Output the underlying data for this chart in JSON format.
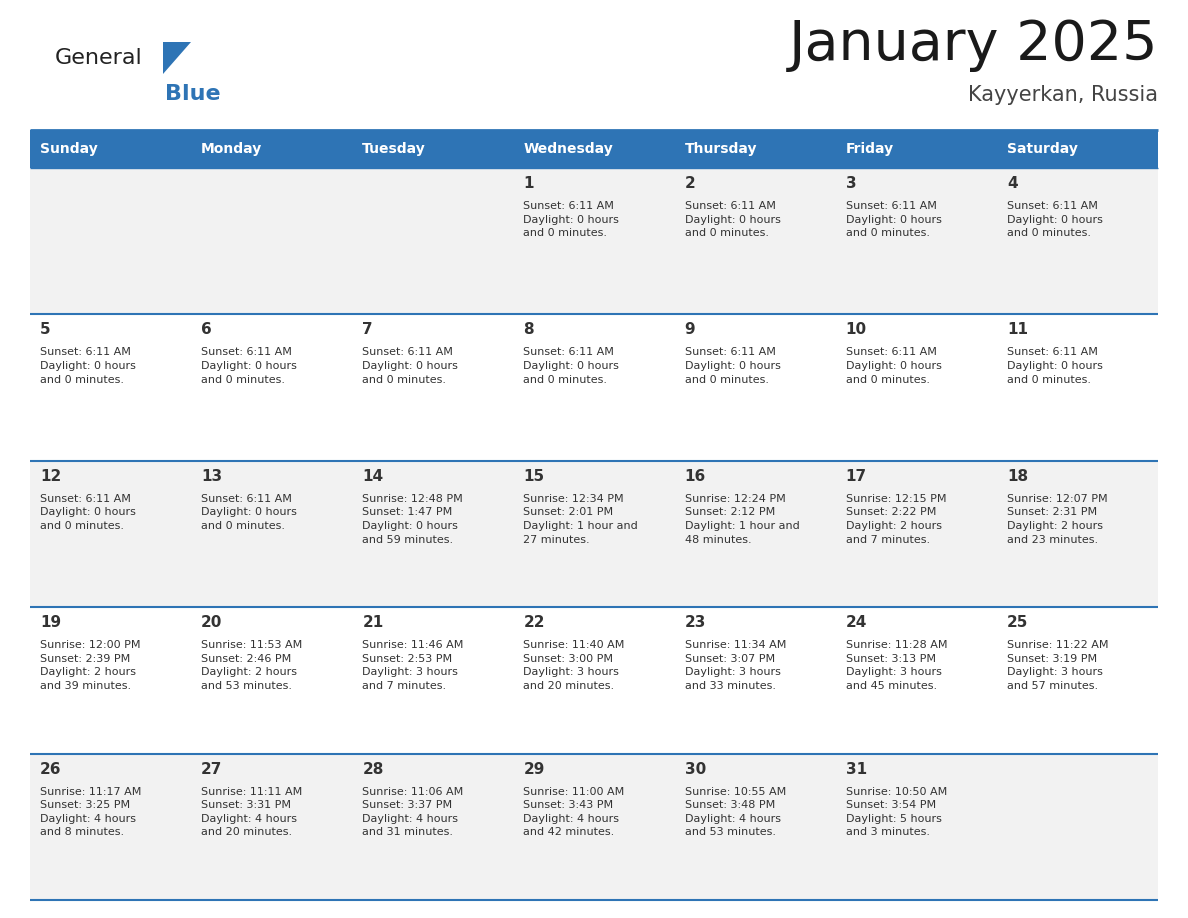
{
  "title": "January 2025",
  "subtitle": "Kayyerkan, Russia",
  "header_bg": "#2E74B5",
  "header_text_color": "#FFFFFF",
  "row_bg_odd": "#F2F2F2",
  "row_bg_even": "#FFFFFF",
  "border_color": "#2E74B5",
  "text_color": "#333333",
  "day_headers": [
    "Sunday",
    "Monday",
    "Tuesday",
    "Wednesday",
    "Thursday",
    "Friday",
    "Saturday"
  ],
  "days": [
    {
      "day": 1,
      "col": 3,
      "row": 1,
      "sunrise": "",
      "sunset": "Sunset: 6:11 AM",
      "daylight": "Daylight: 0 hours\nand 0 minutes."
    },
    {
      "day": 2,
      "col": 4,
      "row": 1,
      "sunrise": "",
      "sunset": "Sunset: 6:11 AM",
      "daylight": "Daylight: 0 hours\nand 0 minutes."
    },
    {
      "day": 3,
      "col": 5,
      "row": 1,
      "sunrise": "",
      "sunset": "Sunset: 6:11 AM",
      "daylight": "Daylight: 0 hours\nand 0 minutes."
    },
    {
      "day": 4,
      "col": 6,
      "row": 1,
      "sunrise": "",
      "sunset": "Sunset: 6:11 AM",
      "daylight": "Daylight: 0 hours\nand 0 minutes."
    },
    {
      "day": 5,
      "col": 0,
      "row": 2,
      "sunrise": "",
      "sunset": "Sunset: 6:11 AM",
      "daylight": "Daylight: 0 hours\nand 0 minutes."
    },
    {
      "day": 6,
      "col": 1,
      "row": 2,
      "sunrise": "",
      "sunset": "Sunset: 6:11 AM",
      "daylight": "Daylight: 0 hours\nand 0 minutes."
    },
    {
      "day": 7,
      "col": 2,
      "row": 2,
      "sunrise": "",
      "sunset": "Sunset: 6:11 AM",
      "daylight": "Daylight: 0 hours\nand 0 minutes."
    },
    {
      "day": 8,
      "col": 3,
      "row": 2,
      "sunrise": "",
      "sunset": "Sunset: 6:11 AM",
      "daylight": "Daylight: 0 hours\nand 0 minutes."
    },
    {
      "day": 9,
      "col": 4,
      "row": 2,
      "sunrise": "",
      "sunset": "Sunset: 6:11 AM",
      "daylight": "Daylight: 0 hours\nand 0 minutes."
    },
    {
      "day": 10,
      "col": 5,
      "row": 2,
      "sunrise": "",
      "sunset": "Sunset: 6:11 AM",
      "daylight": "Daylight: 0 hours\nand 0 minutes."
    },
    {
      "day": 11,
      "col": 6,
      "row": 2,
      "sunrise": "",
      "sunset": "Sunset: 6:11 AM",
      "daylight": "Daylight: 0 hours\nand 0 minutes."
    },
    {
      "day": 12,
      "col": 0,
      "row": 3,
      "sunrise": "",
      "sunset": "Sunset: 6:11 AM",
      "daylight": "Daylight: 0 hours\nand 0 minutes."
    },
    {
      "day": 13,
      "col": 1,
      "row": 3,
      "sunrise": "",
      "sunset": "Sunset: 6:11 AM",
      "daylight": "Daylight: 0 hours\nand 0 minutes."
    },
    {
      "day": 14,
      "col": 2,
      "row": 3,
      "sunrise": "Sunrise: 12:48 PM",
      "sunset": "Sunset: 1:47 PM",
      "daylight": "Daylight: 0 hours\nand 59 minutes."
    },
    {
      "day": 15,
      "col": 3,
      "row": 3,
      "sunrise": "Sunrise: 12:34 PM",
      "sunset": "Sunset: 2:01 PM",
      "daylight": "Daylight: 1 hour and\n27 minutes."
    },
    {
      "day": 16,
      "col": 4,
      "row": 3,
      "sunrise": "Sunrise: 12:24 PM",
      "sunset": "Sunset: 2:12 PM",
      "daylight": "Daylight: 1 hour and\n48 minutes."
    },
    {
      "day": 17,
      "col": 5,
      "row": 3,
      "sunrise": "Sunrise: 12:15 PM",
      "sunset": "Sunset: 2:22 PM",
      "daylight": "Daylight: 2 hours\nand 7 minutes."
    },
    {
      "day": 18,
      "col": 6,
      "row": 3,
      "sunrise": "Sunrise: 12:07 PM",
      "sunset": "Sunset: 2:31 PM",
      "daylight": "Daylight: 2 hours\nand 23 minutes."
    },
    {
      "day": 19,
      "col": 0,
      "row": 4,
      "sunrise": "Sunrise: 12:00 PM",
      "sunset": "Sunset: 2:39 PM",
      "daylight": "Daylight: 2 hours\nand 39 minutes."
    },
    {
      "day": 20,
      "col": 1,
      "row": 4,
      "sunrise": "Sunrise: 11:53 AM",
      "sunset": "Sunset: 2:46 PM",
      "daylight": "Daylight: 2 hours\nand 53 minutes."
    },
    {
      "day": 21,
      "col": 2,
      "row": 4,
      "sunrise": "Sunrise: 11:46 AM",
      "sunset": "Sunset: 2:53 PM",
      "daylight": "Daylight: 3 hours\nand 7 minutes."
    },
    {
      "day": 22,
      "col": 3,
      "row": 4,
      "sunrise": "Sunrise: 11:40 AM",
      "sunset": "Sunset: 3:00 PM",
      "daylight": "Daylight: 3 hours\nand 20 minutes."
    },
    {
      "day": 23,
      "col": 4,
      "row": 4,
      "sunrise": "Sunrise: 11:34 AM",
      "sunset": "Sunset: 3:07 PM",
      "daylight": "Daylight: 3 hours\nand 33 minutes."
    },
    {
      "day": 24,
      "col": 5,
      "row": 4,
      "sunrise": "Sunrise: 11:28 AM",
      "sunset": "Sunset: 3:13 PM",
      "daylight": "Daylight: 3 hours\nand 45 minutes."
    },
    {
      "day": 25,
      "col": 6,
      "row": 4,
      "sunrise": "Sunrise: 11:22 AM",
      "sunset": "Sunset: 3:19 PM",
      "daylight": "Daylight: 3 hours\nand 57 minutes."
    },
    {
      "day": 26,
      "col": 0,
      "row": 5,
      "sunrise": "Sunrise: 11:17 AM",
      "sunset": "Sunset: 3:25 PM",
      "daylight": "Daylight: 4 hours\nand 8 minutes."
    },
    {
      "day": 27,
      "col": 1,
      "row": 5,
      "sunrise": "Sunrise: 11:11 AM",
      "sunset": "Sunset: 3:31 PM",
      "daylight": "Daylight: 4 hours\nand 20 minutes."
    },
    {
      "day": 28,
      "col": 2,
      "row": 5,
      "sunrise": "Sunrise: 11:06 AM",
      "sunset": "Sunset: 3:37 PM",
      "daylight": "Daylight: 4 hours\nand 31 minutes."
    },
    {
      "day": 29,
      "col": 3,
      "row": 5,
      "sunrise": "Sunrise: 11:00 AM",
      "sunset": "Sunset: 3:43 PM",
      "daylight": "Daylight: 4 hours\nand 42 minutes."
    },
    {
      "day": 30,
      "col": 4,
      "row": 5,
      "sunrise": "Sunrise: 10:55 AM",
      "sunset": "Sunset: 3:48 PM",
      "daylight": "Daylight: 4 hours\nand 53 minutes."
    },
    {
      "day": 31,
      "col": 5,
      "row": 5,
      "sunrise": "Sunrise: 10:50 AM",
      "sunset": "Sunset: 3:54 PM",
      "daylight": "Daylight: 5 hours\nand 3 minutes."
    }
  ],
  "num_rows": 5,
  "num_cols": 7,
  "logo_text_general": "General",
  "logo_text_blue": "Blue",
  "logo_color_general": "#222222",
  "logo_color_blue": "#2E74B5",
  "fig_width": 11.88,
  "fig_height": 9.18,
  "dpi": 100
}
